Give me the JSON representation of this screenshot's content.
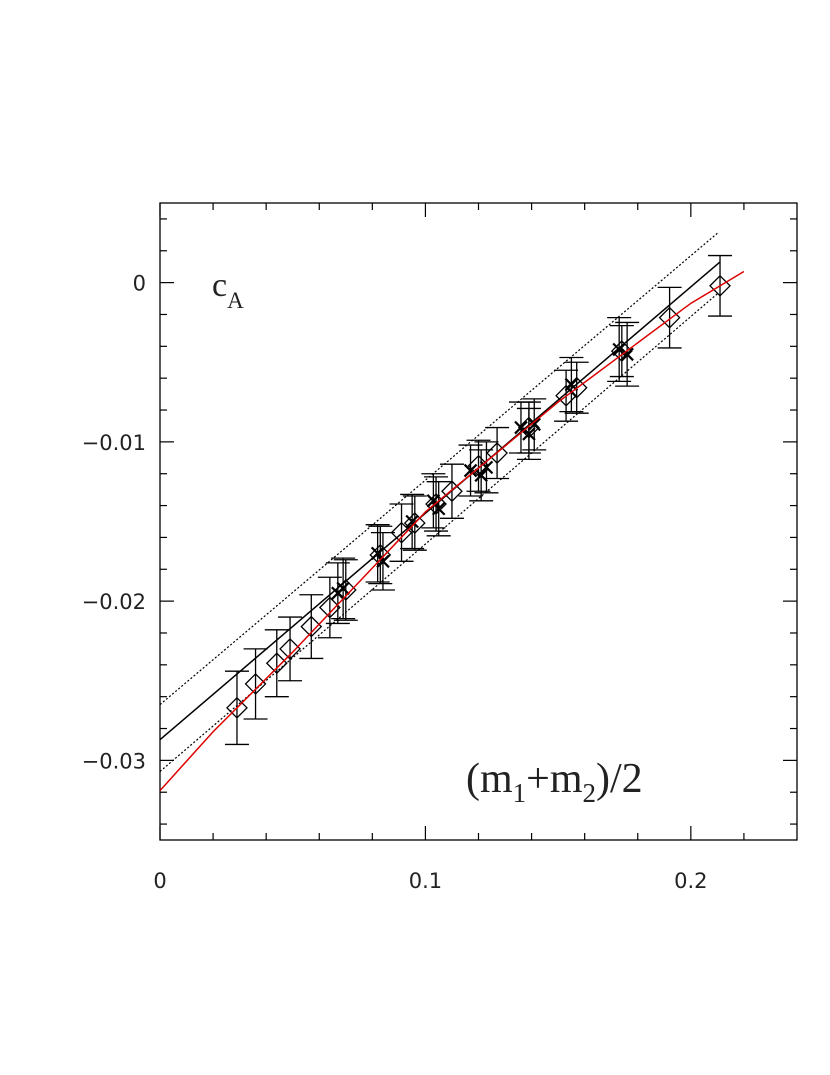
{
  "chart_data": {
    "type": "scatter",
    "x_label": [
      "(m",
      "1",
      "+m",
      "2",
      ")/2"
    ],
    "y_label": [
      "c",
      "A"
    ],
    "xlim": [
      0,
      0.24
    ],
    "ylim": [
      -0.035,
      0.005
    ],
    "xticks": [
      0,
      0.1,
      0.2
    ],
    "yticks": [
      0,
      {
        "value": -0.01,
        "label": "−0.01"
      },
      {
        "value": -0.02,
        "label": "−0.02"
      },
      {
        "value": -0.03,
        "label": "−0.03"
      }
    ],
    "x_minor_ticks": [
      0.02,
      0.04,
      0.06,
      0.08,
      0.12,
      0.14,
      0.16,
      0.18,
      0.22
    ],
    "y_minor_ticks": [
      0.004,
      0.002,
      -0.002,
      -0.004,
      -0.006,
      -0.008,
      -0.012,
      -0.014,
      -0.016,
      -0.018,
      -0.022,
      -0.024,
      -0.026,
      -0.028,
      -0.032,
      -0.034
    ],
    "series": [
      {
        "marker": "diamond",
        "color": "#000000",
        "x": [
          0.029,
          0.036,
          0.044,
          0.049,
          0.057,
          0.064,
          0.07,
          0.083,
          0.091,
          0.096,
          0.104,
          0.11,
          0.12,
          0.127,
          0.139,
          0.153,
          0.157,
          0.174,
          0.192,
          0.211
        ],
        "values": [
          -0.0267,
          -0.0252,
          -0.0239,
          -0.023,
          -0.0216,
          -0.0204,
          -0.0193,
          -0.0171,
          -0.0157,
          -0.0151,
          -0.0139,
          -0.0131,
          -0.0115,
          -0.0107,
          -0.0091,
          -0.0071,
          -0.0066,
          -0.0043,
          -0.0022,
          -0.0002
        ],
        "errors": [
          0.0023,
          0.0022,
          0.0021,
          0.002,
          0.002,
          0.0019,
          0.0019,
          0.0018,
          0.0018,
          0.0017,
          0.0017,
          0.0017,
          0.0016,
          0.0016,
          0.0016,
          0.0016,
          0.0016,
          0.0016,
          0.0019,
          0.0019
        ]
      },
      {
        "marker": "cross",
        "color": "#000000",
        "x": [
          0.067,
          0.069,
          0.082,
          0.084,
          0.095,
          0.103,
          0.105,
          0.117,
          0.121,
          0.123,
          0.136,
          0.139,
          0.141,
          0.155,
          0.173,
          0.176
        ],
        "values": [
          -0.0195,
          -0.0192,
          -0.017,
          -0.0175,
          -0.015,
          -0.0137,
          -0.0142,
          -0.0118,
          -0.0121,
          -0.0116,
          -0.0091,
          -0.0095,
          -0.0089,
          -0.0064,
          -0.0042,
          -0.0045
        ],
        "errors": [
          0.0019,
          0.0019,
          0.0018,
          0.0018,
          0.0017,
          0.0017,
          0.0017,
          0.0016,
          0.0016,
          0.0016,
          0.0016,
          0.0016,
          0.0016,
          0.0017,
          0.002,
          0.002
        ]
      },
      {
        "marker": "none",
        "line": "solid",
        "color": "#000000",
        "x": [
          0,
          0.211
        ],
        "values": [
          -0.0287,
          0.0013
        ]
      },
      {
        "marker": "none",
        "line": "dotted",
        "color": "#000000",
        "x": [
          0,
          0.21
        ],
        "values": [
          -0.0265,
          0.0031
        ]
      },
      {
        "marker": "none",
        "line": "dotted",
        "color": "#000000",
        "x": [
          0,
          0.21
        ],
        "values": [
          -0.0307,
          -0.0007
        ]
      },
      {
        "marker": "none",
        "line": "solid",
        "color": "#dd0000",
        "x": [
          0,
          0.02,
          0.05,
          0.1,
          0.15,
          0.2,
          0.22
        ],
        "values": [
          -0.0319,
          -0.0282,
          -0.0232,
          -0.0144,
          -0.0075,
          -0.0013,
          0.0007
        ]
      }
    ]
  }
}
